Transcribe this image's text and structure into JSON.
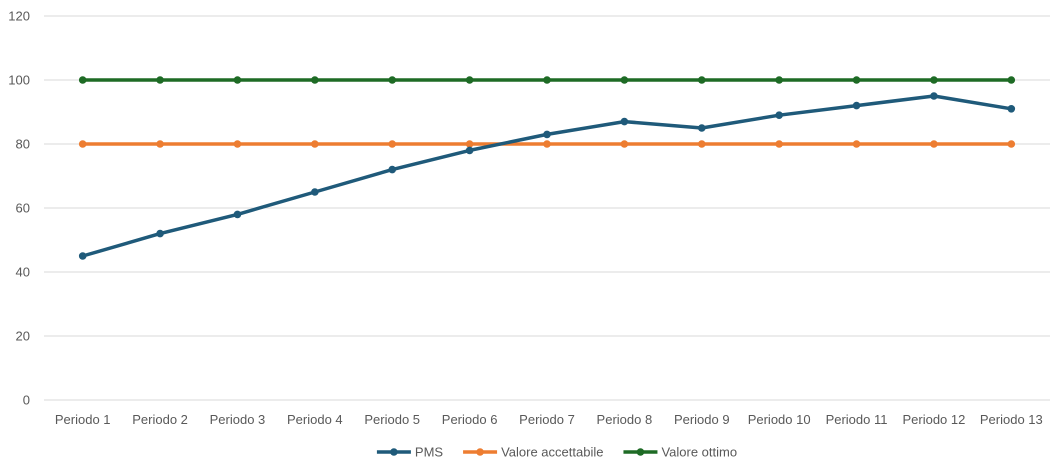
{
  "chart_data": {
    "type": "line",
    "title": "",
    "xlabel": "",
    "ylabel": "",
    "categories": [
      "Periodo 1",
      "Periodo 2",
      "Periodo 3",
      "Periodo 4",
      "Periodo 5",
      "Periodo 6",
      "Periodo 7",
      "Periodo 8",
      "Periodo 9",
      "Periodo 10",
      "Periodo 11",
      "Periodo 12",
      "Periodo 13"
    ],
    "ylim": [
      0,
      120
    ],
    "yticks": [
      0,
      20,
      40,
      60,
      80,
      100,
      120
    ],
    "grid": true,
    "legend_position": "bottom",
    "series": [
      {
        "name": "PMS",
        "color": "#1f5a7a",
        "values": [
          45,
          52,
          58,
          65,
          72,
          78,
          83,
          87,
          85,
          89,
          92,
          95,
          91
        ]
      },
      {
        "name": "Valore accettabile",
        "color": "#ed7d31",
        "values": [
          80,
          80,
          80,
          80,
          80,
          80,
          80,
          80,
          80,
          80,
          80,
          80,
          80
        ]
      },
      {
        "name": "Valore ottimo",
        "color": "#1e6b25",
        "values": [
          100,
          100,
          100,
          100,
          100,
          100,
          100,
          100,
          100,
          100,
          100,
          100,
          100
        ]
      }
    ]
  }
}
